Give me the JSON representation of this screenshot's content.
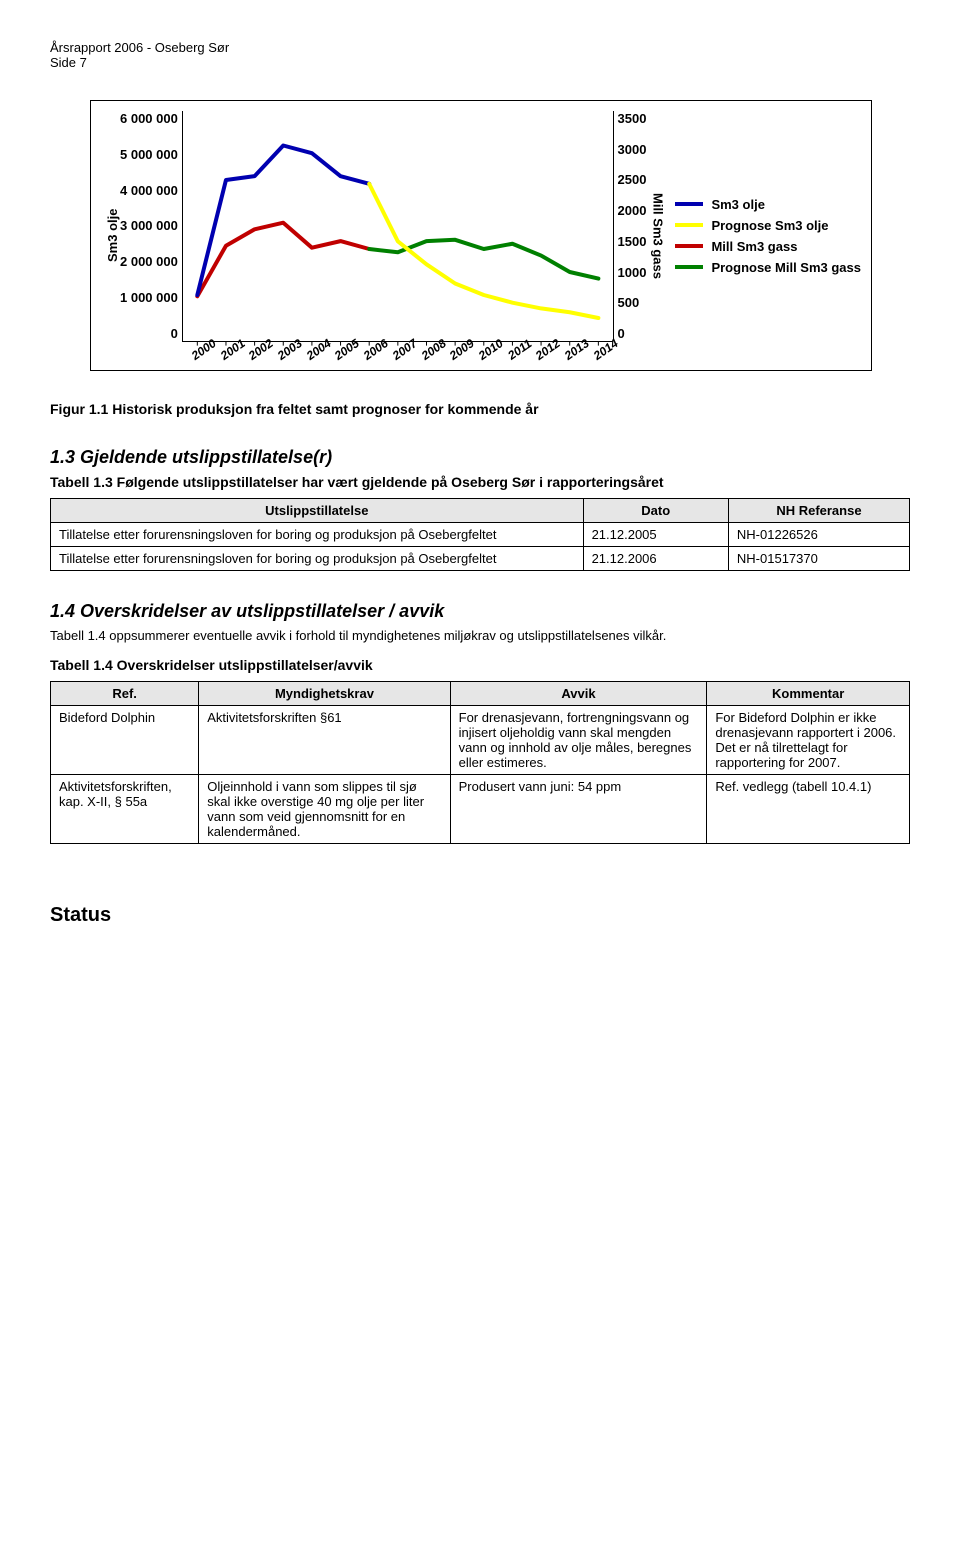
{
  "header": {
    "l1": "Årsrapport 2006 - Oseberg Sør",
    "l2": "Side 7"
  },
  "chart": {
    "y_left_label": "Sm3 olje",
    "y_right_label": "Mill Sm3 gass",
    "y_left_ticks": [
      "6 000 000",
      "5 000 000",
      "4 000 000",
      "3 000 000",
      "2 000 000",
      "1 000 000",
      "0"
    ],
    "y_right_ticks": [
      "3500",
      "3000",
      "2500",
      "2000",
      "1500",
      "1000",
      "500",
      "0"
    ],
    "x_labels": [
      "2000",
      "2001",
      "2002",
      "2003",
      "2004",
      "2005",
      "2006",
      "2007",
      "2008",
      "2009",
      "2010",
      "2011",
      "2012",
      "2013",
      "2014"
    ],
    "legend": [
      {
        "label": "Sm3 olje",
        "color": "#0000b0"
      },
      {
        "label": "Prognose Sm3 olje",
        "color": "#ffff00"
      },
      {
        "label": "Mill Sm3 gass",
        "color": "#c00000"
      },
      {
        "label": "Prognose  Mill Sm3 gass",
        "color": "#008000"
      }
    ],
    "series": {
      "sm3_olje": {
        "color": "#0000b0",
        "width": 4,
        "y": [
          1.2,
          4.2,
          4.3,
          5.1,
          4.9,
          4.3,
          4.1
        ]
      },
      "prog_sm3_olje": {
        "color": "#ffff00",
        "width": 4,
        "y": [
          null,
          null,
          null,
          null,
          null,
          null,
          4.1,
          2.6,
          2.0,
          1.5,
          1.2,
          1.0,
          0.85,
          0.75,
          0.6
        ]
      },
      "mill_gass": {
        "color": "#c00000",
        "width": 4,
        "y2": [
          680,
          1450,
          1700,
          1800,
          1420,
          1520,
          1400
        ]
      },
      "prog_mill_gass": {
        "color": "#008000",
        "width": 4,
        "y2": [
          null,
          null,
          null,
          null,
          null,
          null,
          1400,
          1350,
          1520,
          1540,
          1400,
          1480,
          1300,
          1050,
          950
        ]
      }
    },
    "y_left_max": 6000000,
    "y_right_max": 3500
  },
  "captions": {
    "fig1": "Figur 1.1 Historisk produksjon fra feltet samt prognoser for kommende år",
    "sec13": "1.3   Gjeldende utslippstillatelse(r)",
    "tbl13": "Tabell 1.3 Følgende utslippstillatelser har vært gjeldende på Oseberg Sør i rapporteringsåret",
    "sec14": "1.4   Overskridelser av utslippstillatelser / avvik",
    "p14": "Tabell 1.4 oppsummerer eventuelle avvik i forhold til myndighetenes miljøkrav og utslippstillatelsenes vilkår.",
    "tbl14": "Tabell 1.4 Overskridelser utslippstillatelser/avvik",
    "status": "Status"
  },
  "table1": {
    "headers": [
      "Utslippstillatelse",
      "Dato",
      "NH Referanse"
    ],
    "rows": [
      [
        "Tillatelse etter forurensningsloven for boring og produksjon på Osebergfeltet",
        "21.12.2005",
        "NH-01226526"
      ],
      [
        "Tillatelse etter forurensningsloven for boring og produksjon på Osebergfeltet",
        "21.12.2006",
        "NH-01517370"
      ]
    ]
  },
  "table2": {
    "headers": [
      "Ref.",
      "Myndighetskrav",
      "Avvik",
      "Kommentar"
    ],
    "rows": [
      [
        "Bideford Dolphin",
        "Aktivitetsforskriften §61",
        "For drenasjevann, fortrengningsvann og injisert oljeholdig vann skal mengden vann og innhold av olje måles, beregnes eller estimeres.",
        "For Bideford Dolphin er ikke drenasjevann rapportert i 2006. Det er nå tilrettelagt for rapportering for 2007."
      ],
      [
        "Aktivitetsforskriften, kap. X-II, § 55a",
        "Oljeinnhold i vann som slippes til sjø skal ikke overstige 40 mg olje per liter vann som veid gjennomsnitt for en kalendermåned.",
        "Produsert vann juni: 54 ppm",
        "Ref. vedlegg (tabell 10.4.1)"
      ]
    ]
  }
}
